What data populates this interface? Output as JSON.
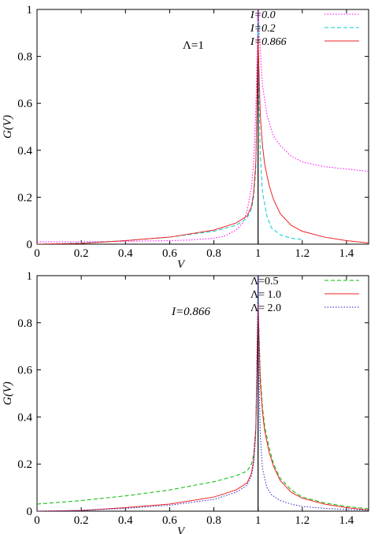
{
  "chart_data": [
    {
      "type": "line",
      "title": "",
      "xlabel": "V",
      "ylabel": "G(V)",
      "xlim": [
        0,
        1.5
      ],
      "ylim": [
        0,
        1
      ],
      "xticks": [
        0,
        0.2,
        0.4,
        0.6,
        0.8,
        1,
        1.2,
        1.4
      ],
      "xtick_labels": [
        "0",
        "0.2",
        "0.4",
        "0.6",
        "0.8",
        "1",
        "1.2",
        "1.4"
      ],
      "yticks": [
        0,
        0.2,
        0.4,
        0.6,
        0.8,
        1
      ],
      "ytick_labels": [
        "0",
        "0.2",
        "0.4",
        "0.6",
        "0.8",
        "1"
      ],
      "grid": false,
      "legend_position": "top-right",
      "annotation": "Λ=1",
      "vertical_line_at": 1,
      "series": [
        {
          "name": "I=0.0",
          "color": "#ff00ff",
          "dash": "dotted",
          "x": [
            0,
            0.2,
            0.4,
            0.6,
            0.7,
            0.8,
            0.85,
            0.9,
            0.93,
            0.95,
            0.97,
            0.98,
            0.99,
            1.0,
            1.01,
            1.02,
            1.04,
            1.07,
            1.1,
            1.15,
            1.2,
            1.3,
            1.4,
            1.5
          ],
          "y": [
            0.01,
            0.01,
            0.012,
            0.015,
            0.018,
            0.025,
            0.035,
            0.06,
            0.09,
            0.14,
            0.24,
            0.35,
            0.58,
            1.0,
            0.83,
            0.68,
            0.55,
            0.46,
            0.42,
            0.375,
            0.35,
            0.33,
            0.32,
            0.31
          ]
        },
        {
          "name": "I=0.2",
          "color": "#00cccc",
          "dash": "dashed",
          "x": [
            0,
            0.2,
            0.4,
            0.6,
            0.8,
            0.9,
            0.95,
            0.97,
            0.98,
            0.99,
            1.0,
            1.005,
            1.01,
            1.02,
            1.04,
            1.06,
            1.1,
            1.15,
            1.2
          ],
          "y": [
            0.0,
            0.005,
            0.015,
            0.03,
            0.055,
            0.08,
            0.11,
            0.15,
            0.2,
            0.32,
            0.95,
            0.6,
            0.38,
            0.22,
            0.12,
            0.07,
            0.04,
            0.025,
            0.02
          ]
        },
        {
          "name": "I=0.866",
          "color": "#ee2222",
          "dash": "solid",
          "x": [
            0,
            0.2,
            0.4,
            0.6,
            0.8,
            0.9,
            0.95,
            0.97,
            0.98,
            0.99,
            1.0,
            1.01,
            1.02,
            1.03,
            1.05,
            1.07,
            1.1,
            1.15,
            1.2,
            1.3,
            1.4,
            1.5
          ],
          "y": [
            0.0,
            0.003,
            0.015,
            0.03,
            0.06,
            0.09,
            0.12,
            0.16,
            0.22,
            0.35,
            0.88,
            0.55,
            0.42,
            0.34,
            0.25,
            0.19,
            0.13,
            0.08,
            0.055,
            0.03,
            0.015,
            0.005
          ]
        }
      ]
    },
    {
      "type": "line",
      "title": "",
      "xlabel": "V",
      "ylabel": "G(V)",
      "xlim": [
        0,
        1.5
      ],
      "ylim": [
        0,
        1
      ],
      "xticks": [
        0,
        0.2,
        0.4,
        0.6,
        0.8,
        1,
        1.2,
        1.4
      ],
      "xtick_labels": [
        "0",
        "0.2",
        "0.4",
        "0.6",
        "0.8",
        "1",
        "1.2",
        "1.4"
      ],
      "yticks": [
        0,
        0.2,
        0.4,
        0.6,
        0.8,
        1
      ],
      "ytick_labels": [
        "0",
        "0.2",
        "0.4",
        "0.6",
        "0.8",
        "1"
      ],
      "grid": false,
      "legend_position": "top-right",
      "annotation": "I=0.866",
      "vertical_line_at": 1,
      "series": [
        {
          "name": "Λ=0.5",
          "color": "#00bb00",
          "dash": "dashed",
          "x": [
            0,
            0.2,
            0.4,
            0.6,
            0.8,
            0.9,
            0.95,
            0.97,
            0.98,
            0.99,
            1.0,
            1.01,
            1.02,
            1.03,
            1.05,
            1.07,
            1.1,
            1.15,
            1.2,
            1.3,
            1.4,
            1.5
          ],
          "y": [
            0.03,
            0.045,
            0.065,
            0.09,
            0.125,
            0.15,
            0.17,
            0.2,
            0.24,
            0.36,
            0.9,
            0.58,
            0.44,
            0.36,
            0.27,
            0.2,
            0.14,
            0.09,
            0.06,
            0.035,
            0.02,
            0.01
          ]
        },
        {
          "name": "Λ= 1.0",
          "color": "#ee2222",
          "dash": "solid",
          "x": [
            0,
            0.2,
            0.4,
            0.6,
            0.8,
            0.9,
            0.95,
            0.97,
            0.98,
            0.99,
            1.0,
            1.01,
            1.02,
            1.03,
            1.05,
            1.07,
            1.1,
            1.15,
            1.2,
            1.3,
            1.4,
            1.5
          ],
          "y": [
            0.0,
            0.003,
            0.015,
            0.03,
            0.06,
            0.09,
            0.12,
            0.16,
            0.22,
            0.35,
            0.88,
            0.55,
            0.42,
            0.34,
            0.25,
            0.19,
            0.13,
            0.08,
            0.055,
            0.03,
            0.015,
            0.005
          ]
        },
        {
          "name": "Λ= 2.0",
          "color": "#2222cc",
          "dash": "dotted",
          "x": [
            0,
            0.2,
            0.4,
            0.6,
            0.8,
            0.9,
            0.95,
            0.97,
            0.98,
            0.99,
            1.0,
            1.005,
            1.01,
            1.02,
            1.04,
            1.06,
            1.1,
            1.15,
            1.2,
            1.3,
            1.4,
            1.5
          ],
          "y": [
            0.0,
            0.003,
            0.012,
            0.025,
            0.05,
            0.08,
            0.11,
            0.15,
            0.2,
            0.33,
            1.0,
            0.55,
            0.32,
            0.18,
            0.1,
            0.07,
            0.045,
            0.03,
            0.02,
            0.012,
            0.007,
            0.004
          ]
        }
      ]
    }
  ]
}
